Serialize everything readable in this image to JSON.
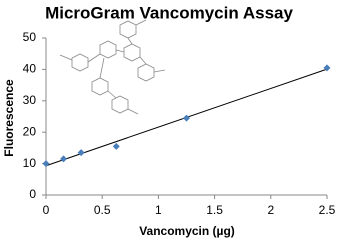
{
  "chart_data": {
    "type": "scatter",
    "title": "MicroGram Vancomycin Assay",
    "x_label": "Vancomycin (µg)",
    "y_label": "Fluorescence",
    "x": [
      0,
      0.156,
      0.3125,
      0.625,
      1.25,
      2.5
    ],
    "values": [
      10,
      11.5,
      13.5,
      15.5,
      24.5,
      40.5
    ],
    "color": "#4a7ebb",
    "trendline": true,
    "xlim": [
      0,
      2.5
    ],
    "xticks": [
      0,
      0.5,
      1,
      1.5,
      2,
      2.5
    ],
    "ylim": [
      0,
      50
    ],
    "yticks": [
      0,
      10,
      20,
      30,
      40,
      50
    ],
    "grid": false
  }
}
